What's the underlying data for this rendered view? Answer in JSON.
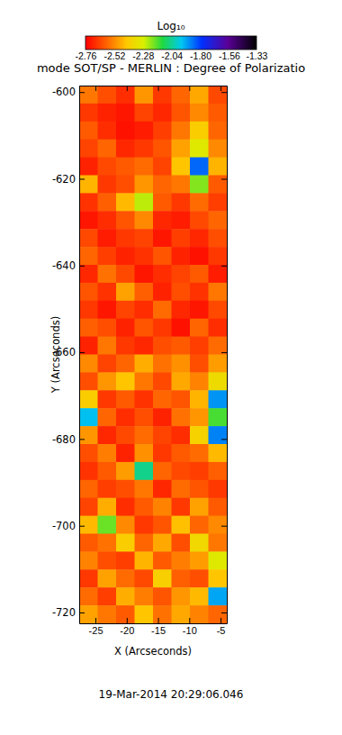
{
  "chart_data": {
    "type": "heatmap",
    "title": "mode SOT/SP - MERLIN : Degree of Polarizatio",
    "subtitle": "19-Mar-2014 20:29:06.046",
    "x_label": "X (Arcseconds)",
    "y_label": "Y (Arcseconds)",
    "xlim": [
      -27.6,
      -4.0
    ],
    "ylim": [
      -722.5,
      -598.5
    ],
    "xticks": [
      -25,
      -20,
      -15,
      -10,
      -5
    ],
    "yticks": [
      -720,
      -700,
      -680,
      -660,
      -640,
      -620,
      -600
    ],
    "colorbar": {
      "title": "Log₁₀",
      "range": [
        -2.76,
        -1.33
      ],
      "ticks": [
        -2.76,
        -2.52,
        -2.28,
        -2.04,
        {
          "value": -1.8,
          "label": "-1.80"
        },
        -1.56,
        -1.33
      ]
    },
    "z": [
      [
        -2.55,
        -2.62,
        -2.68,
        -2.5,
        -2.66,
        -2.58,
        -2.47,
        -2.63
      ],
      [
        -2.66,
        -2.7,
        -2.72,
        -2.64,
        -2.69,
        -2.61,
        -2.52,
        -2.6
      ],
      [
        -2.6,
        -2.68,
        -2.73,
        -2.71,
        -2.65,
        -2.55,
        -2.4,
        -2.58
      ],
      [
        -2.64,
        -2.58,
        -2.69,
        -2.66,
        -2.61,
        -2.48,
        -2.3,
        -2.52
      ],
      [
        -2.7,
        -2.63,
        -2.6,
        -2.57,
        -2.64,
        -2.42,
        -1.85,
        -2.45
      ],
      [
        -2.45,
        -2.66,
        -2.62,
        -2.5,
        -2.58,
        -2.55,
        -2.2,
        -2.6
      ],
      [
        -2.67,
        -2.59,
        -2.44,
        -2.25,
        -2.6,
        -2.66,
        -2.57,
        -2.65
      ],
      [
        -2.72,
        -2.68,
        -2.61,
        -2.52,
        -2.69,
        -2.71,
        -2.63,
        -2.58
      ],
      [
        -2.63,
        -2.71,
        -2.66,
        -2.64,
        -2.72,
        -2.65,
        -2.69,
        -2.62
      ],
      [
        -2.58,
        -2.65,
        -2.7,
        -2.67,
        -2.61,
        -2.7,
        -2.73,
        -2.66
      ],
      [
        -2.69,
        -2.56,
        -2.63,
        -2.72,
        -2.68,
        -2.64,
        -2.6,
        -2.71
      ],
      [
        -2.61,
        -2.67,
        -2.48,
        -2.59,
        -2.7,
        -2.62,
        -2.67,
        -2.55
      ],
      [
        -2.66,
        -2.72,
        -2.64,
        -2.68,
        -2.57,
        -2.69,
        -2.72,
        -2.63
      ],
      [
        -2.59,
        -2.62,
        -2.7,
        -2.61,
        -2.66,
        -2.73,
        -2.58,
        -2.68
      ],
      [
        -2.7,
        -2.55,
        -2.66,
        -2.69,
        -2.62,
        -2.6,
        -2.65,
        -2.57
      ],
      [
        -2.52,
        -2.64,
        -2.58,
        -2.46,
        -2.56,
        -2.51,
        -2.62,
        -2.49
      ],
      [
        -2.62,
        -2.5,
        -2.42,
        -2.55,
        -2.63,
        -2.47,
        -2.53,
        -2.35
      ],
      [
        -2.4,
        -2.66,
        -2.6,
        -2.67,
        -2.58,
        -2.61,
        -2.45,
        -1.9
      ],
      [
        -1.95,
        -2.58,
        -2.68,
        -2.62,
        -2.7,
        -2.56,
        -2.5,
        -2.15
      ],
      [
        -2.5,
        -2.69,
        -2.63,
        -2.57,
        -2.64,
        -2.68,
        -2.38,
        -1.88
      ],
      [
        -2.62,
        -2.54,
        -2.7,
        -2.51,
        -2.66,
        -2.6,
        -2.57,
        -2.44
      ],
      [
        -2.67,
        -2.6,
        -2.49,
        -2.05,
        -2.58,
        -2.63,
        -2.65,
        -2.59
      ],
      [
        -2.58,
        -2.65,
        -2.62,
        -2.55,
        -2.69,
        -2.57,
        -2.61,
        -2.66
      ],
      [
        -2.64,
        -2.46,
        -2.68,
        -2.6,
        -2.53,
        -2.66,
        -2.48,
        -2.6
      ],
      [
        -2.44,
        -2.18,
        -2.52,
        -2.66,
        -2.61,
        -2.43,
        -2.58,
        -2.52
      ],
      [
        -2.6,
        -2.56,
        -2.4,
        -2.58,
        -2.47,
        -2.62,
        -2.36,
        -2.55
      ],
      [
        -2.53,
        -2.62,
        -2.65,
        -2.45,
        -2.6,
        -2.54,
        -2.49,
        -2.3
      ],
      [
        -2.66,
        -2.48,
        -2.57,
        -2.63,
        -2.39,
        -2.59,
        -2.62,
        -2.42
      ],
      [
        -2.57,
        -2.65,
        -2.46,
        -2.54,
        -2.61,
        -2.5,
        -2.44,
        -1.92
      ],
      [
        -2.48,
        -2.55,
        -2.6,
        -2.42,
        -2.56,
        -2.47,
        -2.53,
        -2.58
      ]
    ]
  }
}
